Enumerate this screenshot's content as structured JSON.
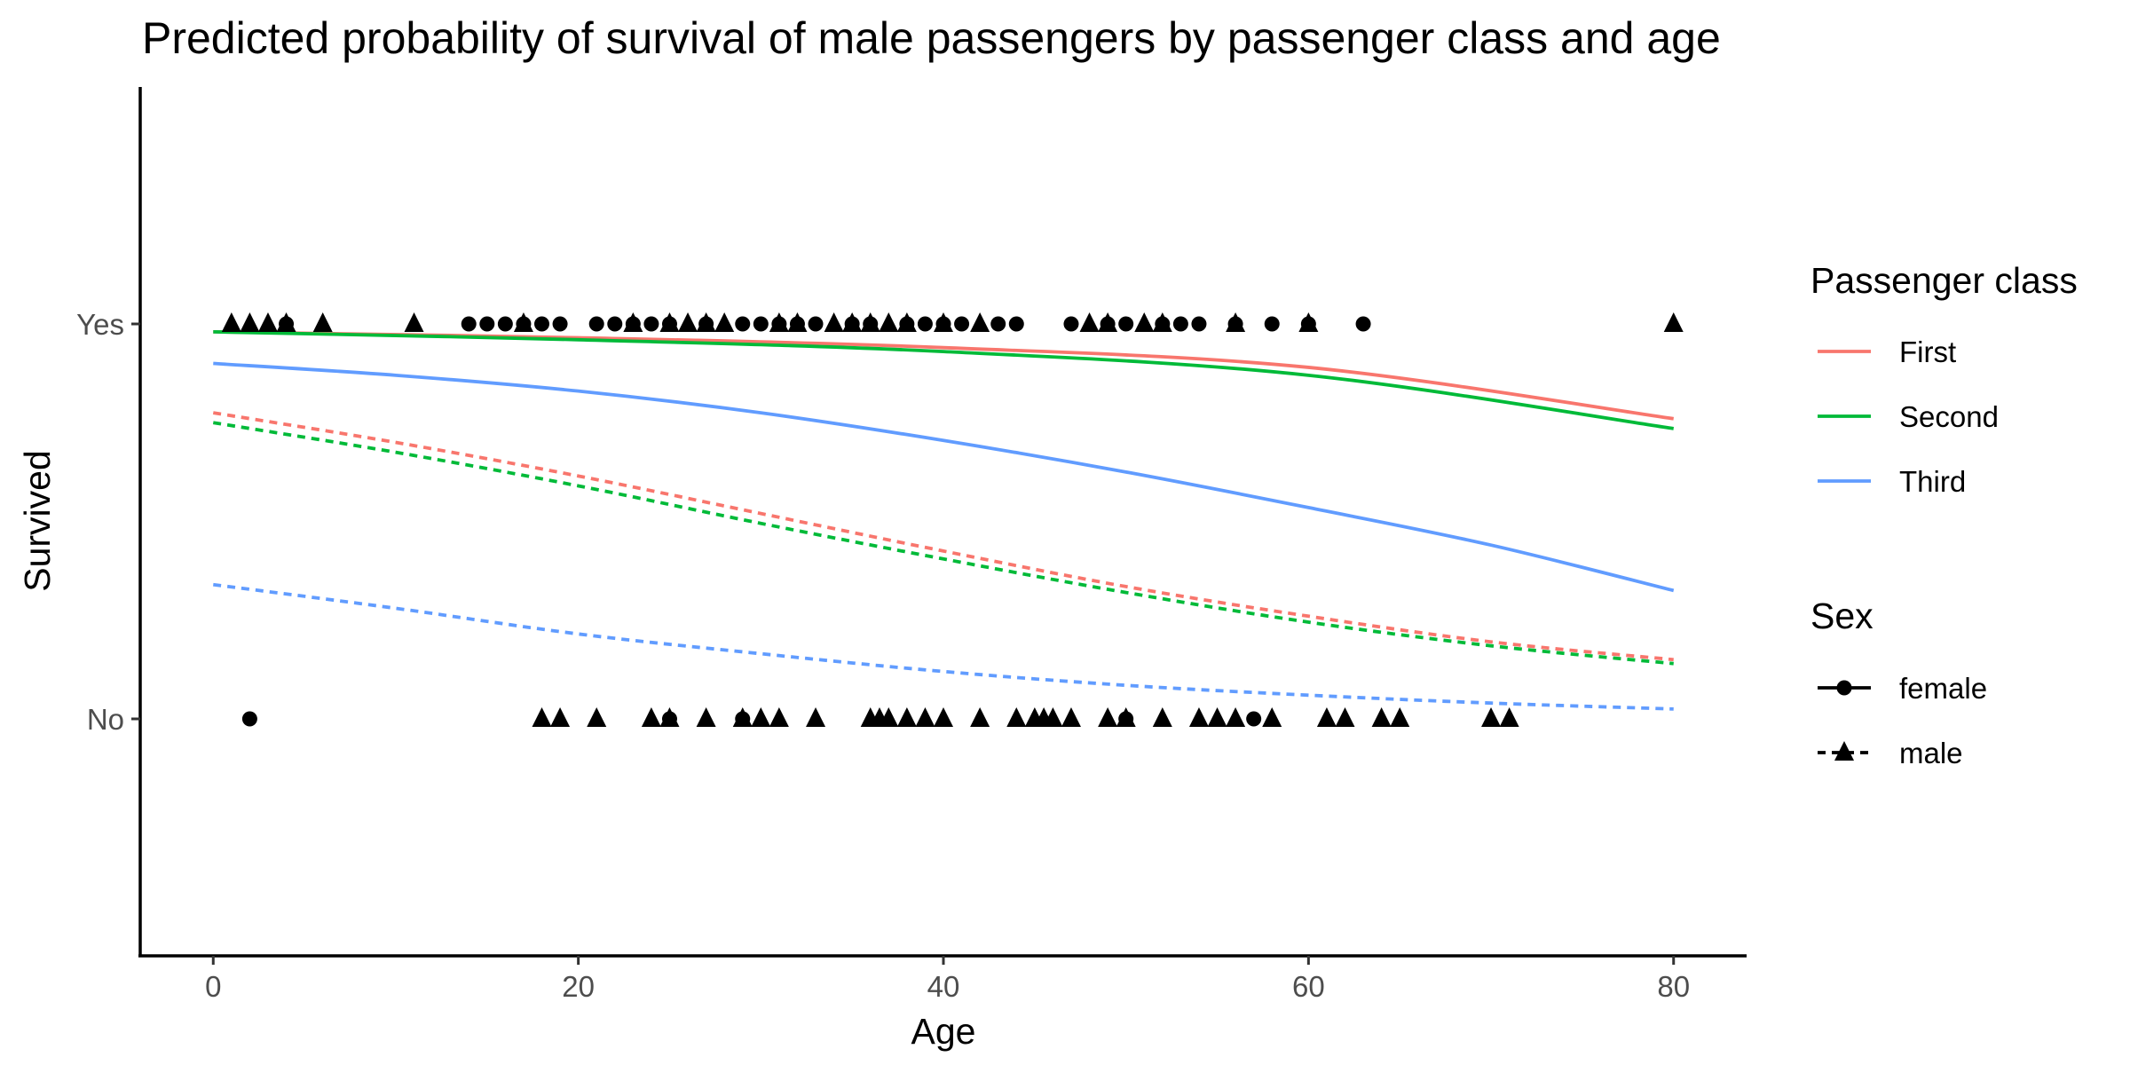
{
  "chart_data": {
    "type": "line",
    "title": "Predicted probability of survival of male passengers by passenger class and age",
    "xlabel": "Age",
    "ylabel": "Survived",
    "xlim": [
      -4,
      84
    ],
    "ylim": [
      -0.6,
      1.6
    ],
    "x_ticks": [
      0,
      20,
      40,
      60,
      80
    ],
    "x_tick_labels": [
      "0",
      "20",
      "40",
      "60",
      "80"
    ],
    "y_ticks": [
      0,
      1
    ],
    "y_tick_labels": [
      "No",
      "Yes"
    ],
    "grid": false,
    "legend_position": "right",
    "legend": {
      "class_title": "Passenger class",
      "sex_title": "Sex",
      "classes": [
        {
          "label": "First",
          "color": "#F8766D"
        },
        {
          "label": "Second",
          "color": "#00BA38"
        },
        {
          "label": "Third",
          "color": "#619CFF"
        }
      ],
      "sexes": [
        {
          "label": "female",
          "dash": "solid",
          "marker": "circle"
        },
        {
          "label": "male",
          "dash": "dashed",
          "marker": "triangle"
        }
      ]
    },
    "series": [
      {
        "name": "First female",
        "class": "First",
        "sex": "female",
        "color": "#F8766D",
        "dash": "solid",
        "x": [
          0,
          20,
          40,
          60,
          80
        ],
        "y": [
          0.98,
          0.965,
          0.94,
          0.89,
          0.76
        ]
      },
      {
        "name": "Second female",
        "class": "Second",
        "sex": "female",
        "color": "#00BA38",
        "dash": "solid",
        "x": [
          0,
          20,
          40,
          60,
          80
        ],
        "y": [
          0.98,
          0.96,
          0.93,
          0.87,
          0.735
        ]
      },
      {
        "name": "Third female",
        "class": "Third",
        "sex": "female",
        "color": "#619CFF",
        "dash": "solid",
        "x": [
          0,
          10,
          20,
          30,
          40,
          50,
          60,
          70,
          80
        ],
        "y": [
          0.9,
          0.87,
          0.83,
          0.775,
          0.705,
          0.625,
          0.535,
          0.44,
          0.325
        ]
      },
      {
        "name": "First male",
        "class": "First",
        "sex": "male",
        "color": "#F8766D",
        "dash": "dashed",
        "x": [
          0,
          10,
          20,
          30,
          40,
          50,
          60,
          70,
          80
        ],
        "y": [
          0.775,
          0.7,
          0.615,
          0.52,
          0.425,
          0.335,
          0.26,
          0.195,
          0.15
        ]
      },
      {
        "name": "Second male",
        "class": "Second",
        "sex": "male",
        "color": "#00BA38",
        "dash": "dashed",
        "x": [
          0,
          10,
          20,
          30,
          40,
          50,
          60,
          70,
          80
        ],
        "y": [
          0.75,
          0.675,
          0.59,
          0.495,
          0.405,
          0.32,
          0.245,
          0.185,
          0.14
        ]
      },
      {
        "name": "Third male",
        "class": "Third",
        "sex": "male",
        "color": "#619CFF",
        "dash": "dashed",
        "x": [
          0,
          10,
          20,
          30,
          40,
          50,
          60,
          70,
          80
        ],
        "y": [
          0.34,
          0.28,
          0.215,
          0.165,
          0.12,
          0.085,
          0.06,
          0.04,
          0.025
        ]
      }
    ],
    "points": {
      "survived_female_ages": [
        4,
        14,
        15,
        16,
        17,
        18,
        19,
        21,
        22,
        23,
        24,
        25,
        27,
        29,
        30,
        31,
        32,
        33,
        35,
        36,
        38,
        39,
        40,
        41,
        43,
        44,
        47,
        49,
        50,
        52,
        53,
        54,
        56,
        58,
        60,
        63
      ],
      "survived_male_ages": [
        1,
        2,
        3,
        4,
        6,
        11,
        17,
        23,
        25,
        26,
        27,
        28,
        31,
        32,
        34,
        35,
        36,
        37,
        38,
        40,
        42,
        48,
        49,
        51,
        52,
        56,
        60,
        80
      ],
      "died_female_ages": [
        2,
        25,
        29,
        50,
        57
      ],
      "died_male_ages": [
        18,
        19,
        21,
        24,
        25,
        27,
        29,
        30,
        31,
        33,
        36,
        36.5,
        37,
        38,
        39,
        40,
        42,
        44,
        45,
        45.5,
        46,
        47,
        49,
        50,
        52,
        54,
        55,
        56,
        58,
        61,
        62,
        64,
        65,
        70,
        71
      ]
    }
  }
}
